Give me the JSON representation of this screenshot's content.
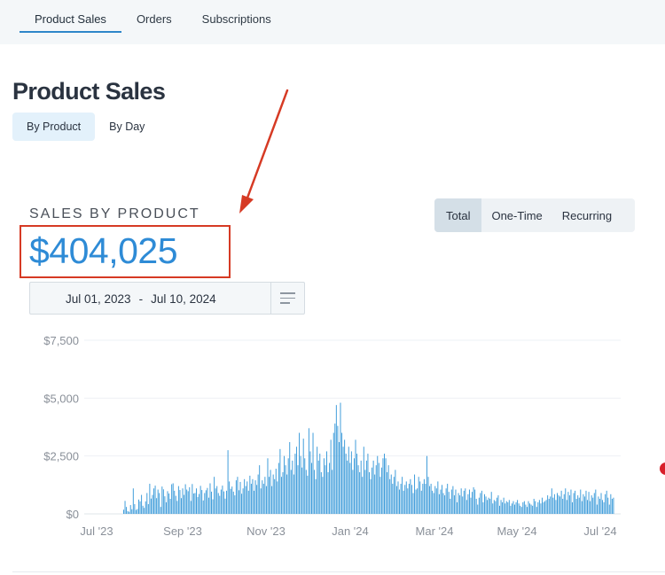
{
  "top_nav": {
    "tabs": [
      {
        "label": "Product Sales",
        "active": true
      },
      {
        "label": "Orders",
        "active": false
      },
      {
        "label": "Subscriptions",
        "active": false
      }
    ]
  },
  "page": {
    "title": "Product Sales",
    "view_tabs": [
      {
        "label": "By Product",
        "active": true
      },
      {
        "label": "By Day",
        "active": false
      }
    ]
  },
  "sales": {
    "section_title": "SALES BY PRODUCT",
    "total": "$404,025",
    "type_filter": [
      {
        "label": "Total",
        "active": true
      },
      {
        "label": "One-Time",
        "active": false
      },
      {
        "label": "Recurring",
        "active": false
      }
    ],
    "date_range": {
      "start": "Jul 01, 2023",
      "separator": "-",
      "end": "Jul 10, 2024"
    }
  },
  "colors": {
    "accent": "#2e8bd6",
    "bar": "#3a9ad9",
    "annotation": "#d63a24"
  },
  "icons": {
    "menu": "hamburger-icon",
    "annotation": "arrow-icon"
  },
  "chart_data": {
    "type": "bar",
    "y_ticks": [
      "$7,500",
      "$5,000",
      "$2,500",
      "$0"
    ],
    "ylim": [
      0,
      7500
    ],
    "x_ticks": [
      "Jul '23",
      "Sep '23",
      "Nov '23",
      "Jan '24",
      "Mar '24",
      "May '24",
      "Jul '24"
    ],
    "grid": true,
    "series": [
      {
        "values": [
          180,
          560,
          300,
          120,
          90,
          380,
          200,
          1100,
          420,
          170,
          210,
          620,
          540,
          820,
          350,
          260,
          540,
          900,
          420,
          1300,
          660,
          820,
          1100,
          1220,
          680,
          1050,
          900,
          300,
          1180,
          1060,
          760,
          500,
          980,
          880,
          650,
          1280,
          1320,
          1000,
          780,
          560,
          1200,
          1030,
          680,
          1100,
          820,
          1280,
          1050,
          980,
          1150,
          560,
          1290,
          880,
          900,
          1100,
          730,
          860,
          1210,
          1030,
          580,
          900,
          1020,
          1120,
          700,
          1320,
          960,
          630,
          1600,
          1100,
          1200,
          900,
          780,
          1050,
          1220,
          970,
          660,
          1000,
          2750,
          1400,
          1080,
          1180,
          960,
          800,
          1450,
          1600,
          1020,
          1380,
          870,
          1100,
          1500,
          1200,
          1400,
          1000,
          1650,
          1300,
          1500,
          1000,
          1450,
          1250,
          1700,
          2100,
          1100,
          1450,
          1300,
          1600,
          1200,
          2400,
          1600,
          1900,
          1200,
          1700,
          1500,
          1950,
          1400,
          2200,
          2800,
          1600,
          1800,
          2500,
          2100,
          1700,
          2400,
          3100,
          1900,
          2300,
          1700,
          2600,
          2900,
          2100,
          3500,
          2500,
          2000,
          3250,
          2400,
          1900,
          1650,
          3700,
          2700,
          2200,
          3500,
          1900,
          1500,
          2900,
          2300,
          2600,
          1800,
          1600,
          2400,
          2100,
          2700,
          1800,
          2200,
          3200,
          1900,
          3500,
          3900,
          4700,
          3800,
          3100,
          4800,
          3500,
          2900,
          3200,
          2600,
          2300,
          2900,
          2200,
          2700,
          1900,
          2400,
          3200,
          2600,
          2100,
          1800,
          2300,
          1600,
          2900,
          1900,
          2300,
          2600,
          1800,
          1500,
          2000,
          2300,
          1700,
          2100,
          2500,
          2200,
          1600,
          2000,
          2400,
          2600,
          2400,
          1800,
          2100,
          1500,
          1700,
          1300,
          1600,
          1900,
          1200,
          1400,
          1050,
          1300,
          1600,
          1000,
          1250,
          1400,
          1100,
          1300,
          1500,
          1250,
          900,
          1700,
          1050,
          1100,
          1600,
          1400,
          1000,
          1300,
          1500,
          1300,
          2500,
          1600,
          1200,
          1300,
          1000,
          900,
          1200,
          1100,
          1400,
          850,
          1050,
          1250,
          900,
          800,
          1100,
          1300,
          950,
          650,
          1050,
          1200,
          800,
          1050,
          500,
          900,
          800,
          1100,
          750,
          1000,
          1100,
          600,
          850,
          1050,
          700,
          950,
          1150,
          1050,
          650,
          400,
          700,
          900,
          1000,
          500,
          850,
          750,
          600,
          700,
          650,
          950,
          450,
          600,
          550,
          700,
          800,
          350,
          600,
          500,
          700,
          450,
          550,
          500,
          600,
          350,
          450,
          550,
          400,
          500,
          600,
          450,
          350,
          300,
          500,
          550,
          400,
          300,
          550,
          450,
          400,
          350,
          650,
          550,
          300,
          500,
          600,
          450,
          700,
          500,
          550,
          600,
          800,
          650,
          750,
          1100,
          700,
          850,
          600,
          900,
          800,
          750,
          1000,
          650,
          850,
          1100,
          600,
          950,
          800,
          1050,
          500,
          900,
          1000,
          650,
          800,
          700,
          1050,
          550,
          850,
          750,
          1000,
          600,
          950,
          550,
          800,
          700,
          900,
          1050,
          400,
          750,
          650,
          900,
          600,
          500,
          850,
          1000,
          700,
          400,
          850,
          650,
          700
        ]
      }
    ]
  }
}
